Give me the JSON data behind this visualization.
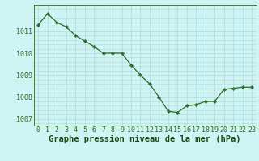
{
  "x": [
    0,
    1,
    2,
    3,
    4,
    5,
    6,
    7,
    8,
    9,
    10,
    11,
    12,
    13,
    14,
    15,
    16,
    17,
    18,
    19,
    20,
    21,
    22,
    23
  ],
  "y": [
    1011.3,
    1011.8,
    1011.4,
    1011.2,
    1010.8,
    1010.55,
    1010.3,
    1010.0,
    1010.0,
    1010.0,
    1009.45,
    1009.0,
    1008.6,
    1008.0,
    1007.35,
    1007.3,
    1007.6,
    1007.65,
    1007.8,
    1007.8,
    1008.35,
    1008.4,
    1008.45,
    1008.45
  ],
  "line_color": "#2d6a2d",
  "marker": "D",
  "marker_size": 2.2,
  "bg_color": "#cff2f2",
  "grid_color": "#aadddd",
  "xlabel": "Graphe pression niveau de la mer (hPa)",
  "xlabel_fontsize": 7.5,
  "xlabel_color": "#1a4a1a",
  "tick_color": "#2d6a2d",
  "tick_fontsize": 6,
  "ytick_labels": [
    1007,
    1008,
    1009,
    1010,
    1011
  ],
  "ylim": [
    1006.7,
    1012.2
  ],
  "xlim": [
    -0.5,
    23.5
  ],
  "xtick_labels": [
    "0",
    "1",
    "2",
    "3",
    "4",
    "5",
    "6",
    "7",
    "8",
    "9",
    "10",
    "11",
    "12",
    "13",
    "14",
    "15",
    "16",
    "17",
    "18",
    "19",
    "20",
    "21",
    "22",
    "23"
  ]
}
